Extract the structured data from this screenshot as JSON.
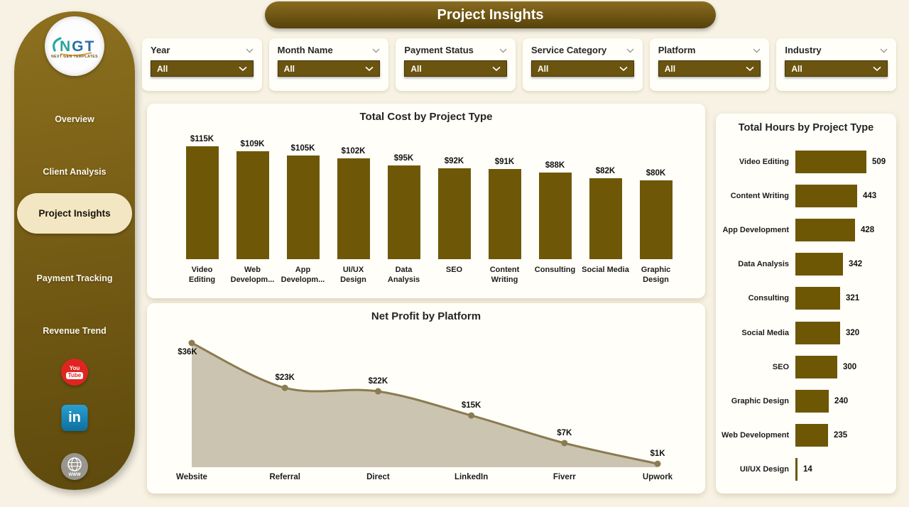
{
  "header": {
    "title": "Project Insights"
  },
  "logo": {
    "letter_accent": "N",
    "letters_rest": "GT",
    "subtext": "NEXT GEN TEMPLATES"
  },
  "sidebar": {
    "items": [
      {
        "label": "Overview",
        "active": false
      },
      {
        "label": "Client Analysis",
        "active": false
      },
      {
        "label": "Project Insights",
        "active": true
      },
      {
        "label": "Payment Tracking",
        "active": false
      },
      {
        "label": "Revenue Trend",
        "active": false
      }
    ],
    "social_icons": [
      "youtube",
      "linkedin",
      "website-globe"
    ],
    "youtube_text_top": "You",
    "youtube_text_bottom": "Tube",
    "linkedin_text": "in"
  },
  "filters": [
    {
      "label": "Year",
      "value": "All"
    },
    {
      "label": "Month Name",
      "value": "All"
    },
    {
      "label": "Payment Status",
      "value": "All"
    },
    {
      "label": "Service Category",
      "value": "All"
    },
    {
      "label": "Platform",
      "value": "All"
    },
    {
      "label": "Industry",
      "value": "All"
    }
  ],
  "chart_data": [
    {
      "type": "bar",
      "title": "Total Cost by Project Type",
      "categories": [
        "Video\nEditing",
        "Web\nDevelopm...",
        "App\nDevelopm...",
        "UI/UX\nDesign",
        "Data\nAnalysis",
        "SEO",
        "Content\nWriting",
        "Consulting",
        "Social Media",
        "Graphic\nDesign"
      ],
      "values": [
        115,
        109,
        105,
        102,
        95,
        92,
        91,
        88,
        82,
        80
      ],
      "labels": [
        "$115K",
        "$109K",
        "$105K",
        "$102K",
        "$95K",
        "$92K",
        "$91K",
        "$88K",
        "$82K",
        "$80K"
      ],
      "unit": "USD thousands",
      "ylim": [
        0,
        115
      ],
      "grid": false,
      "legend": "none"
    },
    {
      "type": "area",
      "title": "Net Profit by Platform",
      "categories": [
        "Website",
        "Referral",
        "Direct",
        "LinkedIn",
        "Fiverr",
        "Upwork"
      ],
      "values": [
        36,
        23,
        22,
        15,
        7,
        1
      ],
      "labels": [
        "$36K",
        "$23K",
        "$22K",
        "$15K",
        "$7K",
        "$1K"
      ],
      "unit": "USD thousands",
      "ylim": [
        0,
        40
      ],
      "grid": false,
      "legend": "none"
    },
    {
      "type": "bar",
      "title": "Total Hours by Project Type",
      "orientation": "horizontal",
      "categories": [
        "Video Editing",
        "Content Writing",
        "App Development",
        "Data Analysis",
        "Consulting",
        "Social Media",
        "SEO",
        "Graphic Design",
        "Web Development",
        "UI/UX Design"
      ],
      "values": [
        509,
        443,
        428,
        342,
        321,
        320,
        300,
        240,
        235,
        14
      ],
      "unit": "hours",
      "xlim": [
        0,
        560
      ],
      "grid": false,
      "legend": "none"
    }
  ],
  "colors": {
    "olive_bar": "#6e5808",
    "olive_bar_hours": "#6d5704",
    "sidebar_top": "#8d701f",
    "sidebar_bottom": "#5e4a0d",
    "active_pill": "#f3e6c2",
    "area_fill": "#cbc4b1",
    "line_stroke": "#8b7b51",
    "dropdown_bg": "#6a5410",
    "youtube_red": "#e02521",
    "linkedin_blue": "#1287bd",
    "globe_gray": "#98968f",
    "page_bg": "#f7f2e4",
    "card_bg": "#fffef9"
  }
}
